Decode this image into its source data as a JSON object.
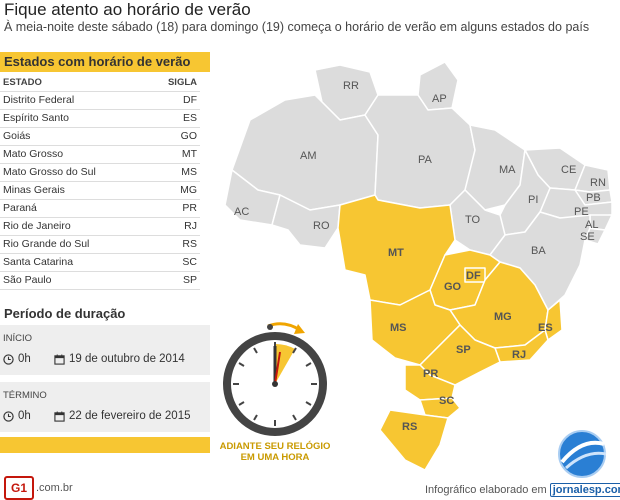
{
  "header": {
    "title": "Fique atento ao horário de verão",
    "subtitle": "À meia-noite deste sábado (18) para domingo (19) começa o horário de verão em alguns estados do país"
  },
  "states_panel": {
    "title": "Estados com horário de verão",
    "col_state": "ESTADO",
    "col_code": "SIGLA",
    "rows": [
      {
        "name": "Distrito Federal",
        "code": "DF"
      },
      {
        "name": "Espírito Santo",
        "code": "ES"
      },
      {
        "name": "Goiás",
        "code": "GO"
      },
      {
        "name": "Mato Grosso",
        "code": "MT"
      },
      {
        "name": "Mato Grosso do Sul",
        "code": "MS"
      },
      {
        "name": "Minas Gerais",
        "code": "MG"
      },
      {
        "name": "Paraná",
        "code": "PR"
      },
      {
        "name": "Rio de Janeiro",
        "code": "RJ"
      },
      {
        "name": "Rio Grande do Sul",
        "code": "RS"
      },
      {
        "name": "Santa Catarina",
        "code": "SC"
      },
      {
        "name": "São Paulo",
        "code": "SP"
      }
    ]
  },
  "period": {
    "title": "Período de duração",
    "start_label": "INÍCIO",
    "start_time": "0h",
    "start_date": "19 de outubro de 2014",
    "end_label": "TÉRMINO",
    "end_time": "0h",
    "end_date": "22 de fevereiro de 2015"
  },
  "clock_caption_1": "ADIANTE SEU RELÓGIO",
  "clock_caption_2": "EM UMA HORA",
  "map_labels": {
    "RR": "RR",
    "AP": "AP",
    "AM": "AM",
    "PA": "PA",
    "MA": "MA",
    "CE": "CE",
    "RN": "RN",
    "PB": "PB",
    "PI": "PI",
    "PE": "PE",
    "AL": "AL",
    "SE": "SE",
    "AC": "AC",
    "RO": "RO",
    "TO": "TO",
    "BA": "BA",
    "MT": "MT",
    "DF": "DF",
    "GO": "GO",
    "MG": "MG",
    "ES": "ES",
    "MS": "MS",
    "SP": "SP",
    "RJ": "RJ",
    "PR": "PR",
    "SC": "SC",
    "RS": "RS"
  },
  "colors": {
    "highlight": "#f7c632",
    "other": "#dcdcdc",
    "border": "#ffffff"
  },
  "footer": {
    "brand": "G1",
    "domain": ".com.br",
    "credit": "Infográfico elaborado em",
    "source": "jornalesp.com"
  }
}
